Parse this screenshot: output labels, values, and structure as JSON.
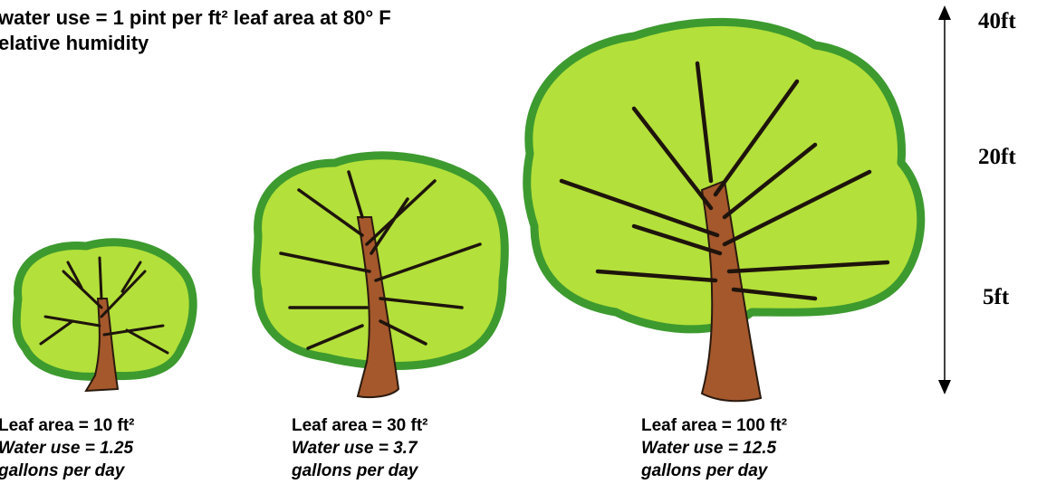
{
  "header": {
    "lines": [
      "water use = 1 pint per ft² leaf area at 80° F",
      "elative humidity"
    ]
  },
  "trees": [
    {
      "leaf_area": "Leaf area = 10 ft²",
      "water_use": "Water use = 1.25",
      "unit": "gallons per day"
    },
    {
      "leaf_area": "Leaf area = 30 ft²",
      "water_use": "Water use = 3.7",
      "unit": "gallons per day"
    },
    {
      "leaf_area": "Leaf area = 100 ft²",
      "water_use": "Water use = 12.5",
      "unit": "gallons per day"
    }
  ],
  "scale": [
    "40ft",
    "20ft",
    "5ft"
  ]
}
